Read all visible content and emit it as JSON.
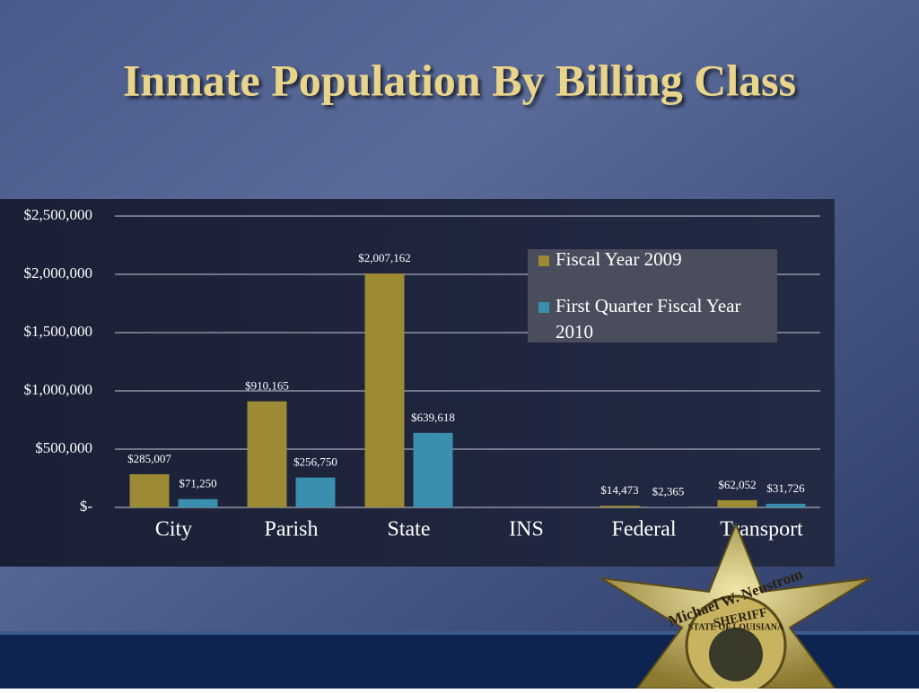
{
  "title": "Inmate Population By Billing Class",
  "chart_data": {
    "type": "bar",
    "categories": [
      "City",
      "Parish",
      "State",
      "INS",
      "Federal",
      "Transport"
    ],
    "series": [
      {
        "name": "Fiscal Year 2009",
        "color": "#9c8a34",
        "values": [
          285007,
          910165,
          2007162,
          null,
          14473,
          62052
        ],
        "value_labels": [
          "$285,007",
          "$910,165",
          "$2,007,162",
          null,
          "$14,473",
          "$62,052"
        ]
      },
      {
        "name": "First Quarter Fiscal Year 2010",
        "color": "#3b8fae",
        "values": [
          71250,
          256750,
          639618,
          null,
          2365,
          31726
        ],
        "value_labels": [
          "$71,250",
          "$256,750",
          "$639,618",
          null,
          "$2,365",
          "$31,726"
        ]
      }
    ],
    "ylim": [
      0,
      2500000
    ],
    "yticks": [
      {
        "value": 0,
        "label": "$-"
      },
      {
        "value": 500000,
        "label": "$500,000"
      },
      {
        "value": 1000000,
        "label": "$1,000,000"
      },
      {
        "value": 1500000,
        "label": "$1,500,000"
      },
      {
        "value": 2000000,
        "label": "$2,000,000"
      },
      {
        "value": 2500000,
        "label": "$2,500,000"
      }
    ],
    "grid": true,
    "legend": "upper right"
  },
  "badge": {
    "name": "Michael W. Neustrom",
    "rank": "SHERIFF",
    "state": "STATE OF LOUISIANA"
  }
}
